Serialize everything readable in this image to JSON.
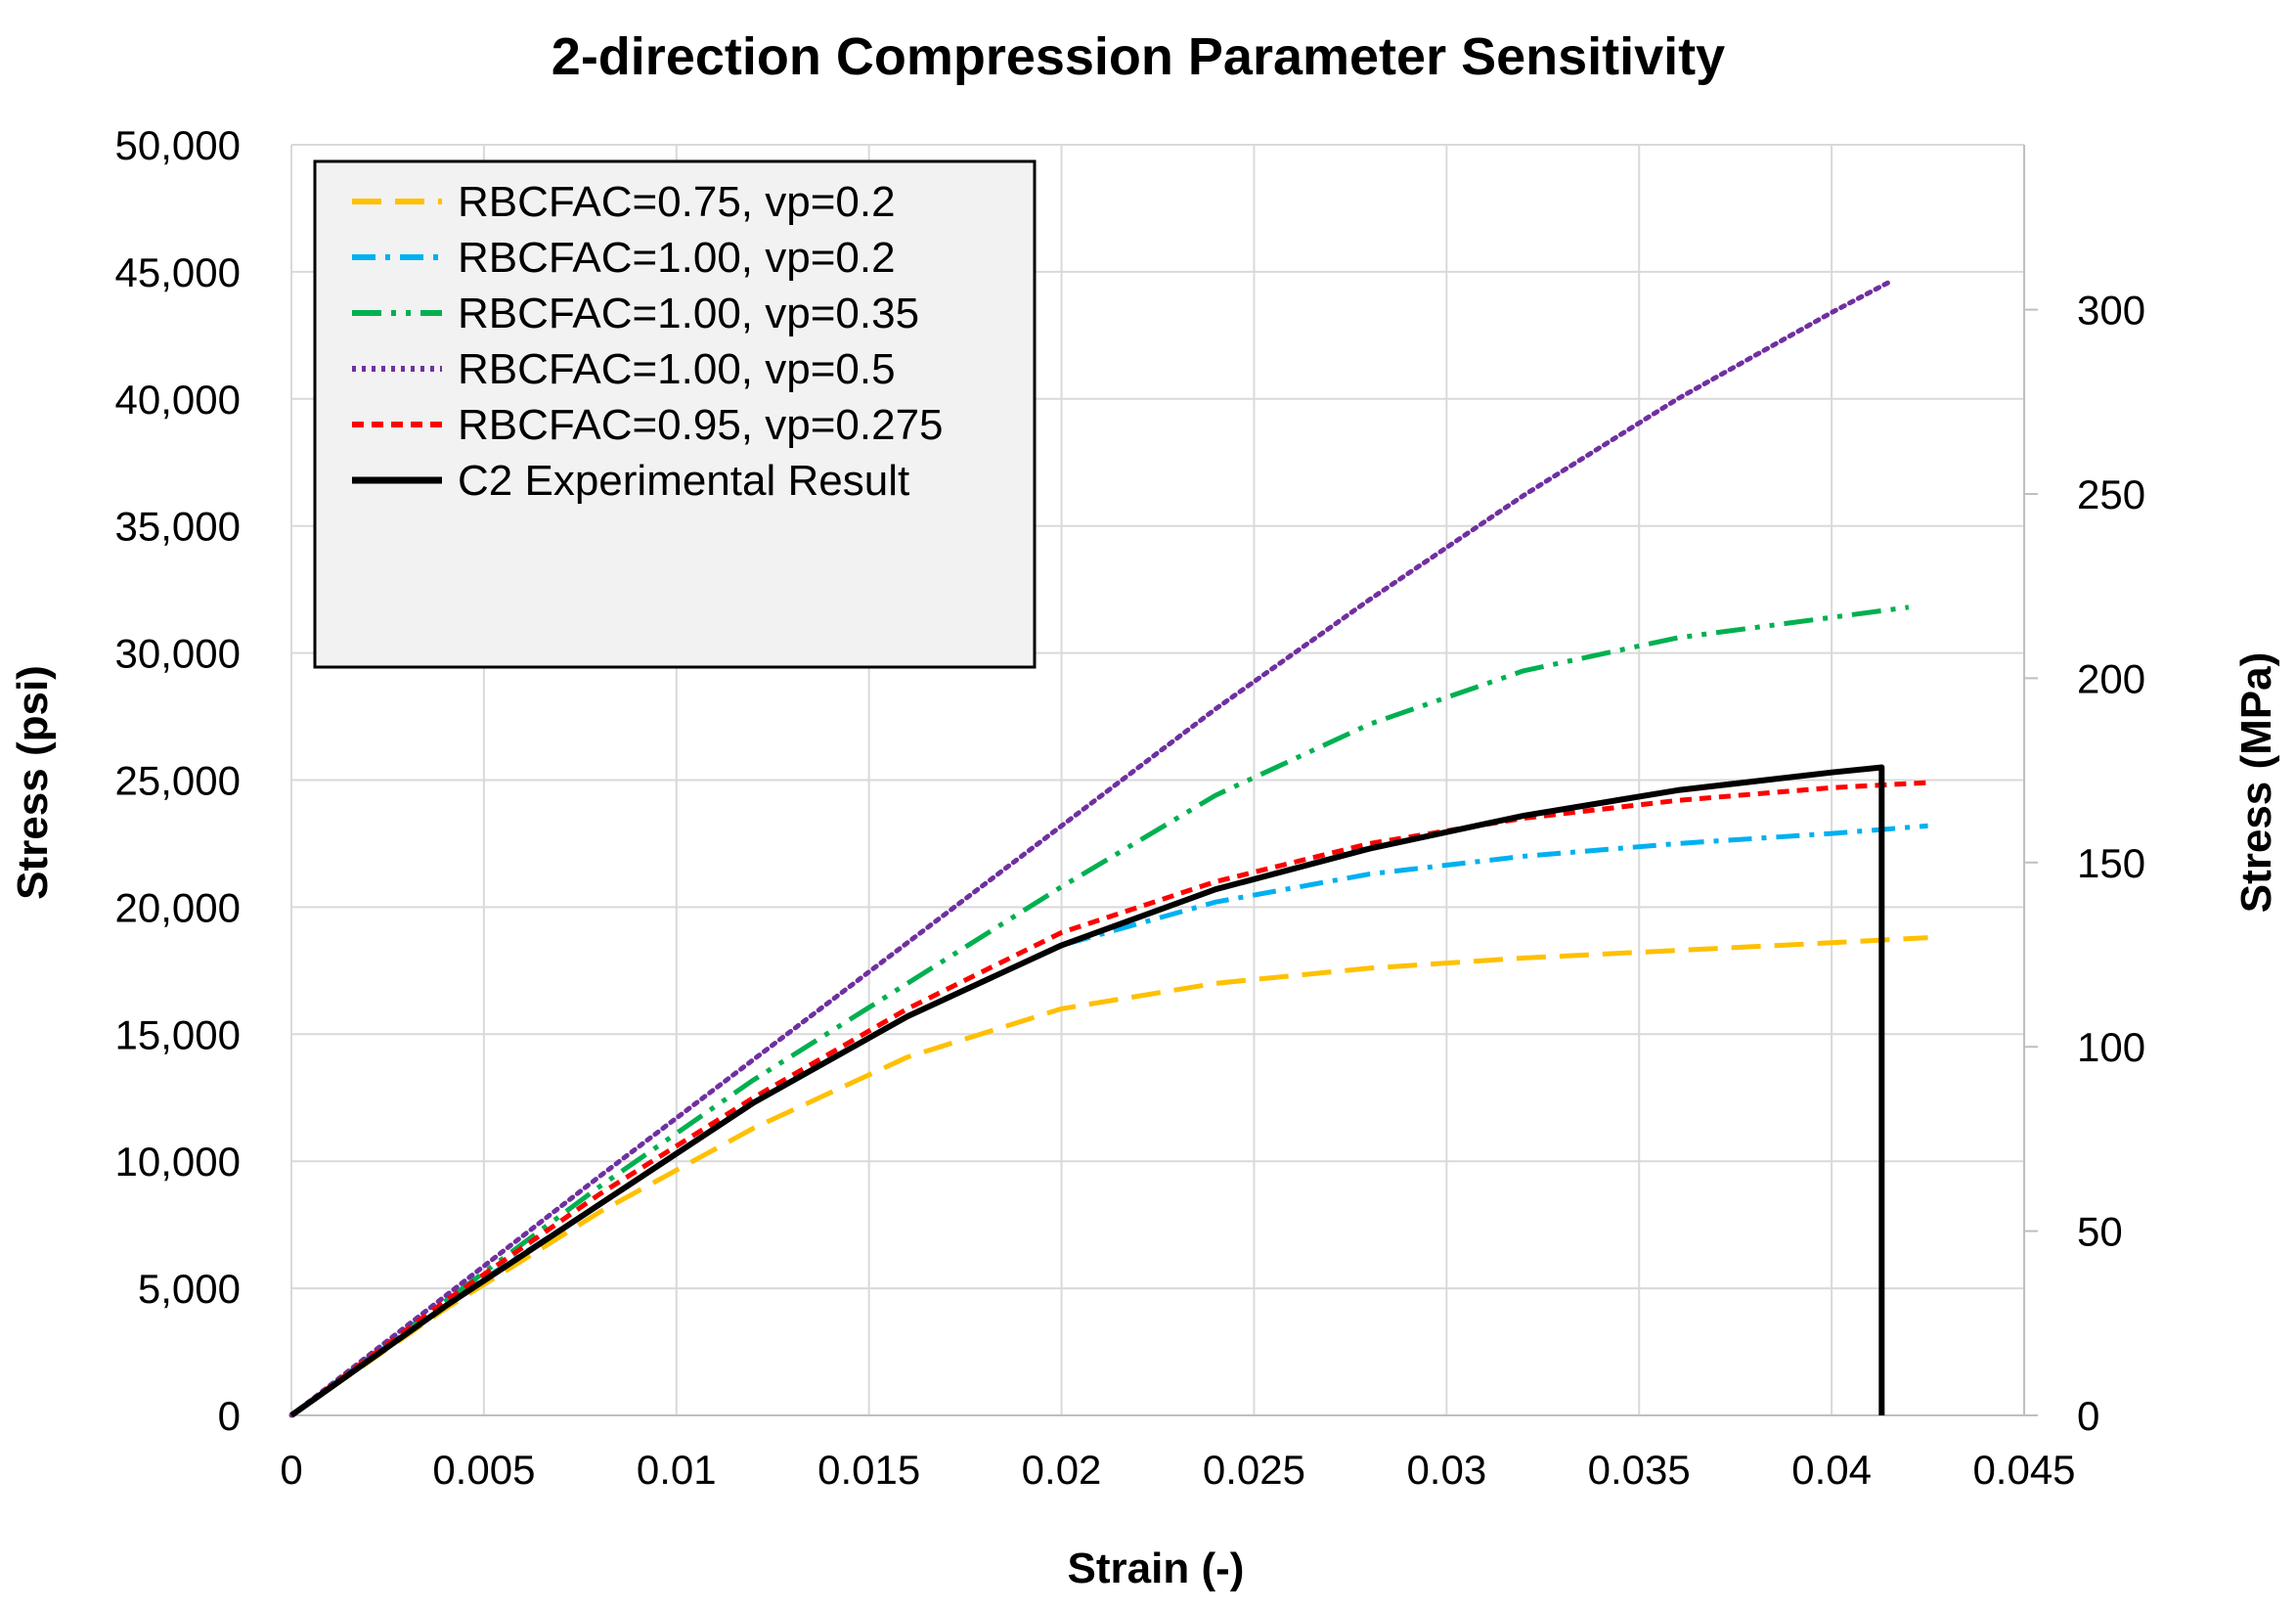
{
  "chart_data": {
    "type": "line",
    "title": "2-direction Compression Parameter Sensitivity",
    "xlabel": "Strain (-)",
    "ylabel": "Stress (psi)",
    "y2label": "Stress (MPa)",
    "xlim": [
      0,
      0.045
    ],
    "ylim": [
      0,
      50000
    ],
    "y2lim": [
      0,
      344.74
    ],
    "xticks": [
      "0",
      "0.005",
      "0.01",
      "0.015",
      "0.02",
      "0.025",
      "0.03",
      "0.035",
      "0.04",
      "0.045"
    ],
    "xtick_values": [
      0,
      0.005,
      0.01,
      0.015,
      0.02,
      0.025,
      0.03,
      0.035,
      0.04,
      0.045
    ],
    "yticks": [
      "0",
      "5,000",
      "10,000",
      "15,000",
      "20,000",
      "25,000",
      "30,000",
      "35,000",
      "40,000",
      "45,000",
      "50,000"
    ],
    "ytick_values": [
      0,
      5000,
      10000,
      15000,
      20000,
      25000,
      30000,
      35000,
      40000,
      45000,
      50000
    ],
    "y2ticks": [
      "0",
      "50",
      "100",
      "150",
      "200",
      "250",
      "300"
    ],
    "y2tick_values": [
      0,
      50,
      100,
      150,
      200,
      250,
      300
    ],
    "grid": true,
    "legend_position": "top-left",
    "series": [
      {
        "name": "RBCFAC=0.75, vp=0.2",
        "color": "#FFC000",
        "dash": "dash",
        "x": [
          0,
          0.004,
          0.008,
          0.012,
          0.016,
          0.02,
          0.024,
          0.028,
          0.032,
          0.036,
          0.04,
          0.0425
        ],
        "y": [
          0,
          4200,
          8000,
          11300,
          14100,
          16000,
          17000,
          17600,
          18000,
          18300,
          18600,
          18800
        ]
      },
      {
        "name": "RBCFAC=1.00, vp=0.2",
        "color": "#00B0F0",
        "dash": "dashdot",
        "x": [
          0,
          0.004,
          0.008,
          0.012,
          0.016,
          0.02,
          0.024,
          0.028,
          0.032,
          0.036,
          0.04,
          0.0425
        ],
        "y": [
          0,
          4400,
          8300,
          12300,
          15700,
          18500,
          20200,
          21300,
          22000,
          22500,
          22900,
          23200
        ]
      },
      {
        "name": "RBCFAC=1.00, vp=0.35",
        "color": "#00B050",
        "dash": "dashdotdot",
        "x": [
          0,
          0.004,
          0.008,
          0.012,
          0.016,
          0.02,
          0.024,
          0.028,
          0.032,
          0.036,
          0.04,
          0.042
        ],
        "y": [
          0,
          4500,
          9000,
          13200,
          17000,
          20800,
          24400,
          27200,
          29300,
          30600,
          31400,
          31800
        ]
      },
      {
        "name": "RBCFAC=1.00, vp=0.5",
        "color": "#7030A0",
        "dash": "dot",
        "x": [
          0,
          0.004,
          0.008,
          0.012,
          0.016,
          0.02,
          0.024,
          0.028,
          0.032,
          0.036,
          0.04,
          0.0415
        ],
        "y": [
          0,
          4700,
          9400,
          14000,
          18600,
          23200,
          27800,
          32100,
          36200,
          40000,
          43400,
          44600
        ]
      },
      {
        "name": "RBCFAC=0.95, vp=0.275",
        "color": "#FF0000",
        "dash": "shortdash",
        "x": [
          0,
          0.004,
          0.008,
          0.012,
          0.016,
          0.02,
          0.024,
          0.028,
          0.032,
          0.036,
          0.04,
          0.0425
        ],
        "y": [
          0,
          4500,
          8700,
          12500,
          16000,
          19000,
          21000,
          22500,
          23500,
          24200,
          24700,
          24900
        ]
      },
      {
        "name": "C2 Experimental Result",
        "color": "#000000",
        "dash": "solid",
        "x": [
          0,
          0.004,
          0.008,
          0.012,
          0.016,
          0.02,
          0.024,
          0.028,
          0.032,
          0.036,
          0.04,
          0.0413,
          0.0413
        ],
        "y": [
          0,
          4300,
          8300,
          12300,
          15700,
          18500,
          20700,
          22300,
          23600,
          24600,
          25300,
          25500,
          0
        ]
      }
    ]
  }
}
